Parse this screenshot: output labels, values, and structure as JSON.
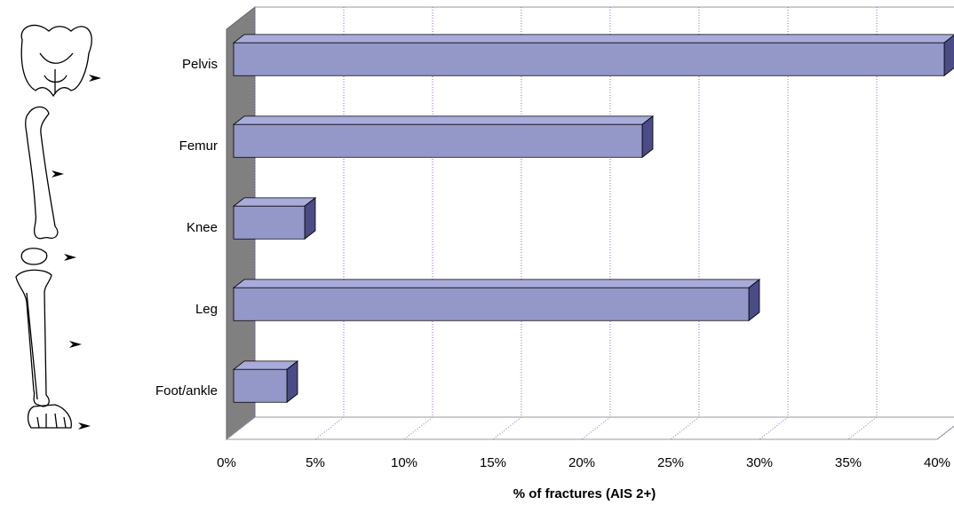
{
  "chart_data": {
    "type": "bar3d_horizontal",
    "categories": [
      "Pelvis",
      "Femur",
      "Knee",
      "Leg",
      "Foot/ankle"
    ],
    "values": [
      40,
      23,
      4,
      29,
      3
    ],
    "color": "#9498c8",
    "x_label": "% of fractures (AIS 2+)",
    "xlim": [
      0,
      40
    ],
    "xticks": [
      {
        "value": 0,
        "label": "0%"
      },
      {
        "value": 5,
        "label": "5%"
      },
      {
        "value": 10,
        "label": "10%"
      },
      {
        "value": 15,
        "label": "15%"
      },
      {
        "value": 20,
        "label": "20%"
      },
      {
        "value": 25,
        "label": "25%"
      },
      {
        "value": 30,
        "label": "30%"
      },
      {
        "value": 35,
        "label": "35%"
      },
      {
        "value": 40,
        "label": "40%"
      }
    ],
    "grid": true
  }
}
